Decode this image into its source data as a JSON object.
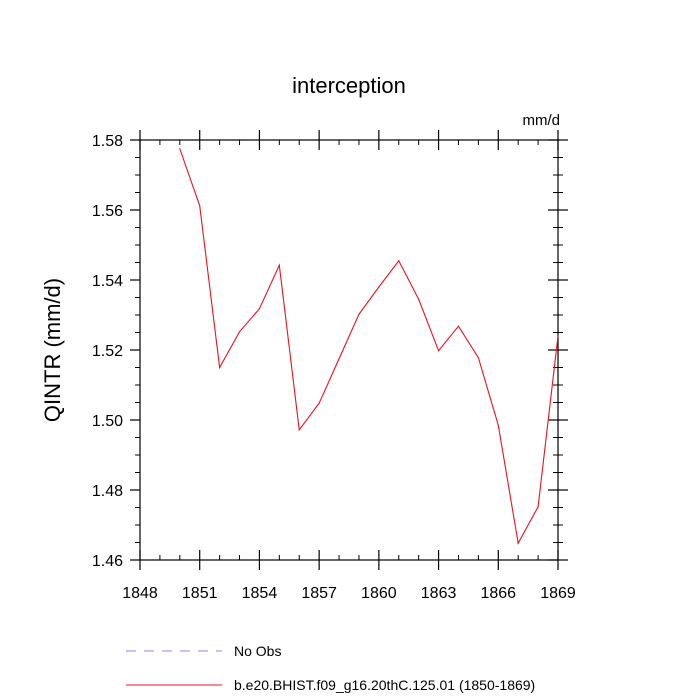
{
  "chart_data": {
    "type": "line",
    "title": "interception",
    "units_label": "mm/d",
    "xlabel": "",
    "ylabel": "QINTR  (mm/d)",
    "xlim": [
      1848,
      1869
    ],
    "ylim": [
      1.46,
      1.58
    ],
    "x_ticks": [
      1848,
      1851,
      1854,
      1857,
      1860,
      1863,
      1866,
      1869
    ],
    "y_ticks": [
      1.46,
      1.48,
      1.5,
      1.52,
      1.54,
      1.56,
      1.58
    ],
    "y_tick_labels": [
      "1.46",
      "1.48",
      "1.50",
      "1.52",
      "1.54",
      "1.56",
      "1.58"
    ],
    "grid": false,
    "legend": "bottom",
    "series": [
      {
        "name": "b.e20.BHIST.f09_g16.20thC.125.01 (1850-1869)",
        "color": "#e8141e",
        "style": "solid",
        "x": [
          1850,
          1851,
          1852,
          1853,
          1854,
          1855,
          1856,
          1857,
          1858,
          1859,
          1860,
          1861,
          1862,
          1863,
          1864,
          1865,
          1866,
          1867,
          1868,
          1869
        ],
        "values": [
          1.5775,
          1.5612,
          1.515,
          1.5252,
          1.5318,
          1.5442,
          1.4972,
          1.5048,
          1.5175,
          1.5302,
          1.538,
          1.5455,
          1.5345,
          1.5198,
          1.5268,
          1.5178,
          1.4985,
          1.4648,
          1.4752,
          1.524
        ]
      }
    ],
    "legend_entries": [
      {
        "label": "No Obs",
        "color": "#8888ee",
        "style": "dashed"
      },
      {
        "label": "b.e20.BHIST.f09_g16.20thC.125.01 (1850-1869)",
        "color": "#e8141e",
        "style": "solid"
      }
    ]
  }
}
